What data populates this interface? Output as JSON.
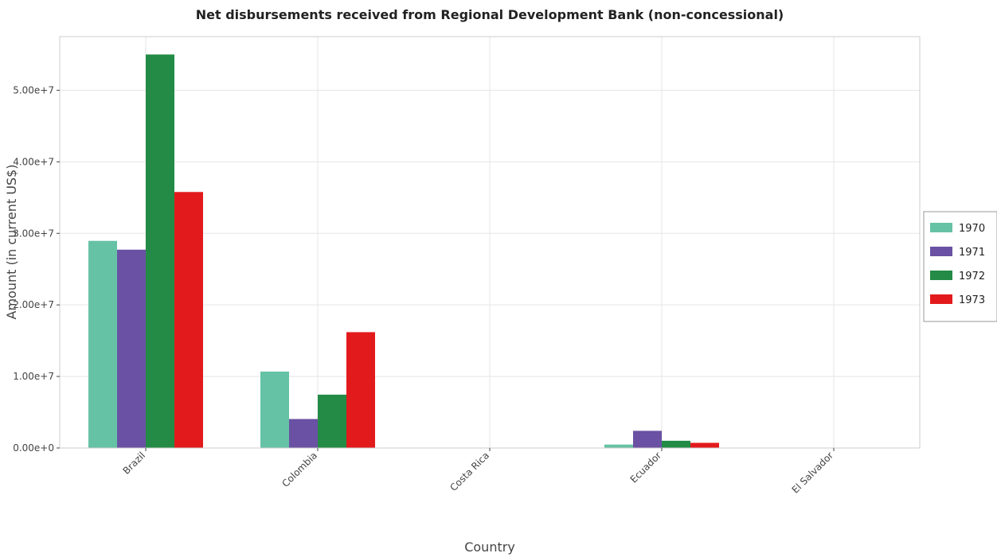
{
  "chart_data": {
    "type": "bar",
    "title": "Net disbursements received from Regional Development Bank (non-concessional)",
    "xlabel": "Country",
    "ylabel": "Amount (in current US$)",
    "categories": [
      "Brazil",
      "Colombia",
      "Costa Rica",
      "Ecuador",
      "El Salvador"
    ],
    "series": [
      {
        "name": "1970",
        "color": "#66c2a5",
        "values": [
          28950000,
          10680000,
          0,
          480000,
          40000
        ]
      },
      {
        "name": "1971",
        "color": "#6a51a3",
        "values": [
          27720000,
          4050000,
          0,
          2400000,
          0
        ]
      },
      {
        "name": "1972",
        "color": "#238b45",
        "values": [
          55000000,
          7450000,
          0,
          1010000,
          0
        ]
      },
      {
        "name": "1973",
        "color": "#e31a1c",
        "values": [
          35780000,
          16190000,
          0,
          720000,
          0
        ]
      }
    ],
    "ylim": [
      0,
      57500000
    ],
    "yticks": [
      0,
      10000000,
      20000000,
      30000000,
      40000000,
      50000000
    ],
    "ytick_labels": [
      "0.00e+0",
      "1.00e+7",
      "2.00e+7",
      "3.00e+7",
      "4.00e+7",
      "5.00e+7"
    ],
    "grid": true,
    "legend_position": "right"
  }
}
